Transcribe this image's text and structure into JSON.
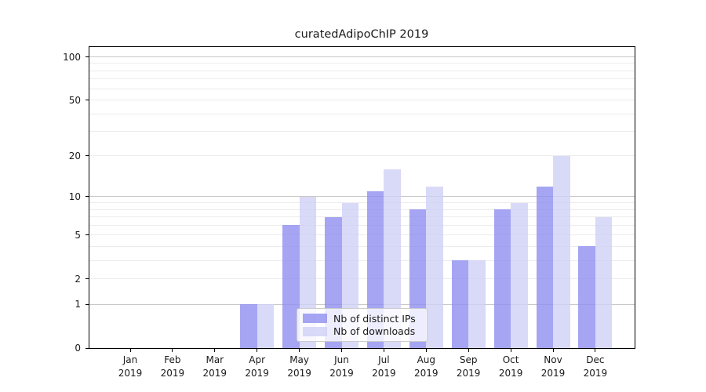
{
  "chart_data": {
    "type": "bar",
    "title": "curatedAdipoChIP 2019",
    "categories": [
      "Jan 2019",
      "Feb 2019",
      "Mar 2019",
      "Apr 2019",
      "May 2019",
      "Jun 2019",
      "Jul 2019",
      "Aug 2019",
      "Sep 2019",
      "Oct 2019",
      "Nov 2019",
      "Dec 2019"
    ],
    "series": [
      {
        "name": "Nb of distinct IPs",
        "color": "#8e8ef0",
        "alpha": 0.8,
        "values": [
          0,
          0,
          0,
          1,
          6,
          7,
          11,
          8,
          3,
          8,
          12,
          4
        ]
      },
      {
        "name": "Nb of downloads",
        "color": "#d0d0f6",
        "alpha": 0.8,
        "values": [
          0,
          0,
          0,
          1,
          10,
          9,
          16,
          12,
          3,
          9,
          20,
          7
        ]
      }
    ],
    "xlabel": "",
    "ylabel": "",
    "yscale": "log1p",
    "ylim": [
      0,
      117
    ],
    "y_tick_values": [
      0,
      1,
      2,
      5,
      10,
      20,
      50,
      100
    ],
    "grid": {
      "on": true,
      "major_values": [
        1,
        10,
        100
      ],
      "minor_values": [
        2,
        3,
        4,
        5,
        6,
        7,
        8,
        9,
        20,
        30,
        40,
        50,
        60,
        70,
        80,
        90
      ],
      "major_color": "#c8c8c8",
      "minor_color": "#ececec"
    },
    "legend_position": "lower center (inside plot)"
  }
}
